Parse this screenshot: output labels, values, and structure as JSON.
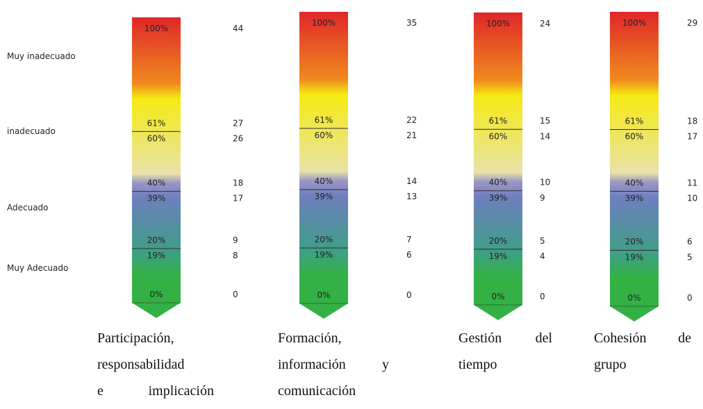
{
  "chart_data": {
    "type": "gauge",
    "levels": [
      "Muy inadecuado",
      "inadecuado",
      "Adecuado",
      "Muy Adecuado"
    ],
    "percent_labels": [
      "100%",
      "61%",
      "60%",
      "40%",
      "39%",
      "20%",
      "19%",
      "0%"
    ],
    "thresholds_percent": [
      61,
      40,
      20
    ],
    "scales": [
      {
        "name_lines": [
          [
            "Participación,"
          ],
          [
            "responsabilidad"
          ],
          [
            "e",
            "implicación"
          ]
        ],
        "values": [
          "44",
          "27",
          "26",
          "18",
          "17",
          "9",
          "8",
          "0"
        ]
      },
      {
        "name_lines": [
          [
            "Formación,"
          ],
          [
            "información",
            "y"
          ],
          [
            "comunicación"
          ]
        ],
        "values": [
          "35",
          "22",
          "21",
          "14",
          "13",
          "7",
          "6",
          "0"
        ]
      },
      {
        "name_lines": [
          [
            "Gestión",
            "del"
          ],
          [
            "tiempo"
          ]
        ],
        "values": [
          "24",
          "15",
          "14",
          "10",
          "9",
          "5",
          "4",
          "0"
        ]
      },
      {
        "name_lines": [
          [
            "Cohesión",
            "de"
          ],
          [
            "grupo"
          ]
        ],
        "values": [
          "29",
          "18",
          "17",
          "11",
          "10",
          "6",
          "5",
          "0"
        ]
      }
    ],
    "gradient_colors": [
      "#e0262a",
      "#f08a1e",
      "#f5ea12",
      "#e8e2a8",
      "#9c97c4",
      "#6d7fbf",
      "#3e9f86",
      "#34b144"
    ]
  }
}
